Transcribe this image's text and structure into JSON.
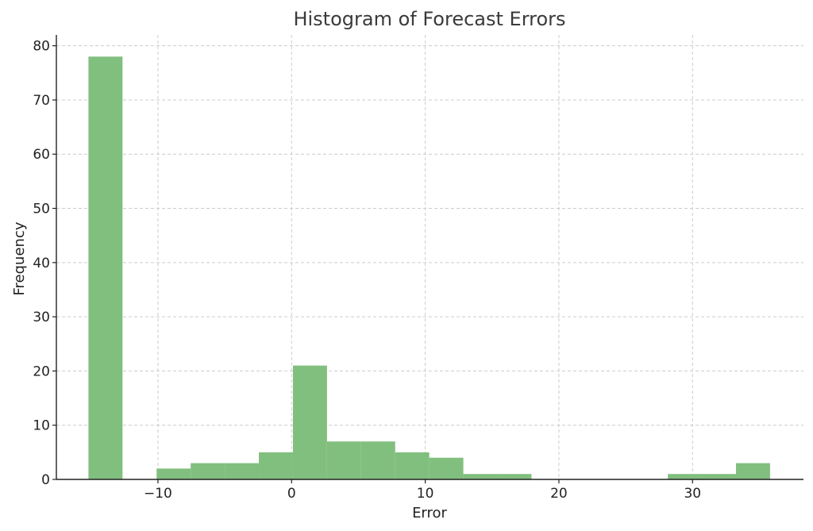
{
  "chart_data": {
    "type": "bar",
    "title": "Histogram of Forecast Errors",
    "xlabel": "Error",
    "ylabel": "Frequency",
    "xlim": [
      -17.6,
      38.3
    ],
    "ylim": [
      0,
      82
    ],
    "xticks": [
      -10,
      0,
      10,
      20,
      30
    ],
    "xtick_labels": [
      "−10",
      "0",
      "10",
      "20",
      "30"
    ],
    "yticks": [
      0,
      10,
      20,
      30,
      40,
      50,
      60,
      70,
      80
    ],
    "grid": true,
    "bar_color": "#81bf7e",
    "bins": [
      {
        "x0": -15.2,
        "x1": -12.65,
        "count": 78
      },
      {
        "x0": -12.65,
        "x1": -10.1,
        "count": 0
      },
      {
        "x0": -10.1,
        "x1": -7.55,
        "count": 2
      },
      {
        "x0": -7.55,
        "x1": -5.0,
        "count": 3
      },
      {
        "x0": -5.0,
        "x1": -2.45,
        "count": 3
      },
      {
        "x0": -2.45,
        "x1": 0.1,
        "count": 5
      },
      {
        "x0": 0.1,
        "x1": 2.65,
        "count": 21
      },
      {
        "x0": 2.65,
        "x1": 5.2,
        "count": 7
      },
      {
        "x0": 5.2,
        "x1": 7.75,
        "count": 7
      },
      {
        "x0": 7.75,
        "x1": 10.3,
        "count": 5
      },
      {
        "x0": 10.3,
        "x1": 12.85,
        "count": 4
      },
      {
        "x0": 12.85,
        "x1": 15.4,
        "count": 1
      },
      {
        "x0": 15.4,
        "x1": 17.95,
        "count": 1
      },
      {
        "x0": 17.95,
        "x1": 20.5,
        "count": 0
      },
      {
        "x0": 20.5,
        "x1": 23.05,
        "count": 0
      },
      {
        "x0": 23.05,
        "x1": 25.6,
        "count": 0
      },
      {
        "x0": 25.6,
        "x1": 28.15,
        "count": 0
      },
      {
        "x0": 28.15,
        "x1": 30.7,
        "count": 1
      },
      {
        "x0": 30.7,
        "x1": 33.25,
        "count": 1
      },
      {
        "x0": 33.25,
        "x1": 35.8,
        "count": 3
      }
    ]
  }
}
